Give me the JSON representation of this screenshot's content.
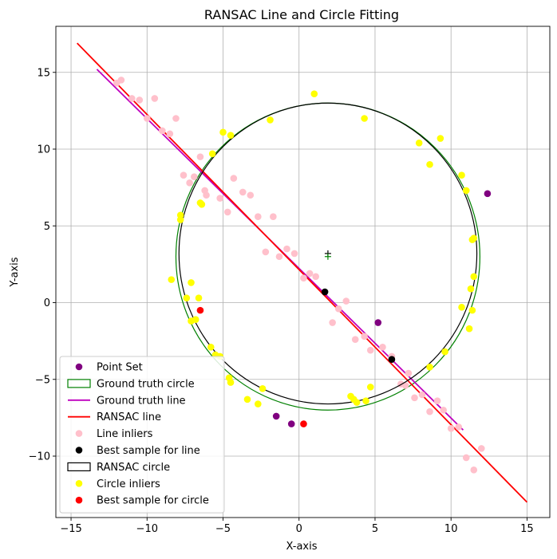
{
  "chart_data": {
    "type": "scatter",
    "title": "RANSAC Line and Circle Fitting",
    "xlabel": "X-axis",
    "ylabel": "Y-axis",
    "xlim": [
      -16.0,
      16.5
    ],
    "ylim": [
      -14.0,
      18.0
    ],
    "xticks": [
      -15,
      -10,
      -5,
      0,
      5,
      10,
      15
    ],
    "yticks": [
      -10,
      -5,
      0,
      5,
      10,
      15
    ],
    "grid": true,
    "legend_position": "lower-left",
    "legend": [
      {
        "label": "Point Set",
        "kind": "dot",
        "color": "#800080"
      },
      {
        "label": "Ground truth circle",
        "kind": "box",
        "color": "#008000"
      },
      {
        "label": "Ground truth line",
        "kind": "line",
        "color": "#bf00bf"
      },
      {
        "label": "RANSAC line",
        "kind": "line",
        "color": "#ff0000"
      },
      {
        "label": "Line inliers",
        "kind": "dot",
        "color": "#ffc0cb"
      },
      {
        "label": "Best sample for line",
        "kind": "dot",
        "color": "#000000"
      },
      {
        "label": "RANSAC circle",
        "kind": "box",
        "color": "#000000"
      },
      {
        "label": "Circle inliers",
        "kind": "dot",
        "color": "#ffff00"
      },
      {
        "label": "Best sample for circle",
        "kind": "dot",
        "color": "#ff0000"
      }
    ],
    "ground_truth_circle": {
      "cx": 1.9,
      "cy": 3.0,
      "r": 10.0,
      "color": "#008000"
    },
    "ransac_circle": {
      "cx": 1.9,
      "cy": 3.2,
      "r": 9.8,
      "color": "#000000"
    },
    "ground_truth_line": {
      "x": [
        -13.3,
        10.8
      ],
      "y": [
        15.2,
        -8.3
      ],
      "color": "#bf00bf"
    },
    "ransac_line": {
      "x": [
        -14.6,
        15.0
      ],
      "y": [
        16.9,
        -13.0
      ],
      "color": "#ff0000"
    },
    "point_set": {
      "color": "#800080",
      "x": [
        12.4,
        5.2,
        -1.5,
        -0.5
      ],
      "y": [
        7.1,
        -1.3,
        -7.4,
        -7.9
      ]
    },
    "line_inliers": {
      "color": "#ffc0cb",
      "x": [
        -12.0,
        -11.7,
        -11.0,
        -10.5,
        -10.0,
        -9.5,
        -9.0,
        -8.5,
        -8.1,
        -7.6,
        -7.2,
        -6.9,
        -6.5,
        -6.2,
        -6.1,
        -5.2,
        -4.7,
        -4.3,
        -3.7,
        -3.2,
        -2.7,
        -2.2,
        -1.7,
        -1.3,
        -0.8,
        -0.3,
        0.3,
        0.7,
        1.1,
        2.2,
        2.6,
        3.1,
        3.7,
        4.3,
        4.7,
        5.5,
        6.1,
        6.7,
        7.0,
        7.2,
        7.6,
        8.1,
        8.6,
        9.1,
        9.5,
        10.0,
        10.5,
        11.0,
        11.5,
        12.0
      ],
      "y": [
        14.3,
        14.5,
        13.3,
        13.2,
        12.0,
        13.3,
        11.2,
        11.0,
        12.0,
        8.3,
        7.8,
        8.2,
        9.5,
        7.3,
        7.0,
        6.8,
        5.9,
        8.1,
        7.2,
        7.0,
        5.6,
        3.3,
        5.6,
        3.0,
        3.5,
        3.2,
        1.6,
        1.9,
        1.7,
        -1.3,
        -0.4,
        0.1,
        -2.4,
        -2.2,
        -3.1,
        -2.9,
        -3.5,
        -5.3,
        -5.4,
        -4.6,
        -6.2,
        -6.0,
        -7.1,
        -6.4,
        -7.0,
        -8.2,
        -8.1,
        -10.1,
        -10.9,
        -9.5
      ]
    },
    "line_best_sample": {
      "color": "#000000",
      "x": [
        1.7,
        6.1
      ],
      "y": [
        0.7,
        -3.7
      ]
    },
    "circle_inliers": {
      "color": "#ffff00",
      "x": [
        1.0,
        -1.9,
        4.3,
        -5.0,
        -4.5,
        -5.7,
        7.9,
        9.3,
        8.6,
        10.7,
        11.0,
        -7.8,
        -7.8,
        -6.4,
        -6.5,
        11.4,
        11.5,
        -8.4,
        -7.1,
        11.5,
        11.3,
        -7.4,
        -6.6,
        10.7,
        -7.1,
        -6.8,
        11.4,
        11.2,
        -5.8,
        -5.5,
        -5.2,
        9.6,
        -4.6,
        -4.5,
        8.6,
        -3.4,
        -2.7,
        -2.4,
        4.7,
        3.4,
        3.6,
        3.8,
        4.4
      ],
      "y": [
        13.6,
        11.9,
        12.0,
        11.1,
        10.9,
        9.7,
        10.4,
        10.7,
        9.0,
        8.3,
        7.3,
        5.7,
        5.4,
        6.4,
        6.5,
        4.1,
        4.2,
        1.5,
        1.3,
        1.7,
        0.9,
        0.3,
        0.3,
        -0.3,
        -1.2,
        -1.1,
        -0.5,
        -1.7,
        -2.9,
        -3.4,
        -3.5,
        -3.2,
        -4.9,
        -5.2,
        -4.2,
        -6.3,
        -6.6,
        -5.6,
        -5.5,
        -6.1,
        -6.3,
        -6.5,
        -6.4
      ]
    },
    "circle_best_sample": {
      "color": "#ff0000",
      "x": [
        -6.5,
        0.3
      ],
      "y": [
        -0.5,
        -7.9
      ]
    },
    "centers": [
      {
        "x": 1.9,
        "y": 3.2,
        "color": "#000000"
      },
      {
        "x": 1.9,
        "y": 3.0,
        "color": "#008000"
      }
    ]
  }
}
